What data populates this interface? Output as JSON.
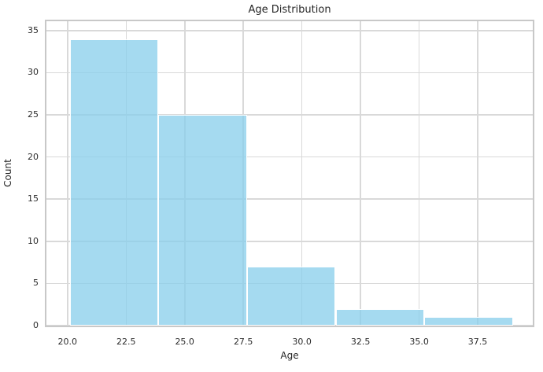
{
  "chart_data": {
    "type": "histogram",
    "title": "Age Distribution",
    "xlabel": "Age",
    "ylabel": "Count",
    "bins": [
      {
        "x0": 20.1,
        "x1": 23.88,
        "count": 34
      },
      {
        "x0": 23.88,
        "x1": 27.66,
        "count": 25
      },
      {
        "x0": 27.66,
        "x1": 31.44,
        "count": 7
      },
      {
        "x0": 31.44,
        "x1": 35.22,
        "count": 2
      },
      {
        "x0": 35.22,
        "x1": 39.0,
        "count": 1
      }
    ],
    "total_count": 69,
    "xlim": [
      19.1,
      39.85
    ],
    "ylim": [
      0,
      36.1
    ],
    "xtick_values": [
      20.0,
      22.5,
      25.0,
      27.5,
      30.0,
      32.5,
      35.0,
      37.5
    ],
    "xtick_labels": [
      "20.0",
      "22.5",
      "25.0",
      "27.5",
      "30.0",
      "32.5",
      "35.0",
      "37.5"
    ],
    "ytick_values": [
      0,
      5,
      10,
      15,
      20,
      25,
      30,
      35
    ],
    "ytick_labels": [
      "0",
      "5",
      "10",
      "15",
      "20",
      "25",
      "30",
      "35"
    ],
    "grid": true,
    "legend": false,
    "style": {
      "bar_fill": "#87CEEB",
      "bar_alpha": 0.75,
      "bar_edge": "#FFFFFF",
      "grid_color": "#D9D9D9",
      "spine_color": "#C8C8C8",
      "text_color": "#262626",
      "background": "#FFFFFF"
    }
  }
}
